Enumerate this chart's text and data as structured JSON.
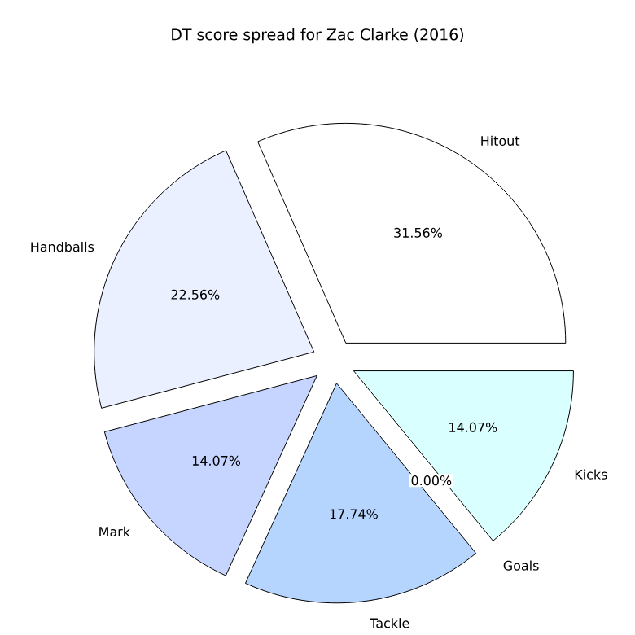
{
  "chart_data": {
    "type": "pie",
    "title": "DT score spread for Zac Clarke (2016)",
    "categories": [
      "Hitout",
      "Handballs",
      "Mark",
      "Tackle",
      "Goals",
      "Kicks"
    ],
    "values": [
      31.56,
      22.56,
      14.07,
      17.74,
      0.0,
      14.07
    ],
    "colors": [
      "#ffffff",
      "#eaf0ff",
      "#c6d5ff",
      "#b5d5ff",
      "#ffffff",
      "#d9ffff"
    ],
    "value_labels": [
      "31.56%",
      "22.56%",
      "14.07%",
      "17.74%",
      "0.00%",
      "14.07%"
    ]
  }
}
